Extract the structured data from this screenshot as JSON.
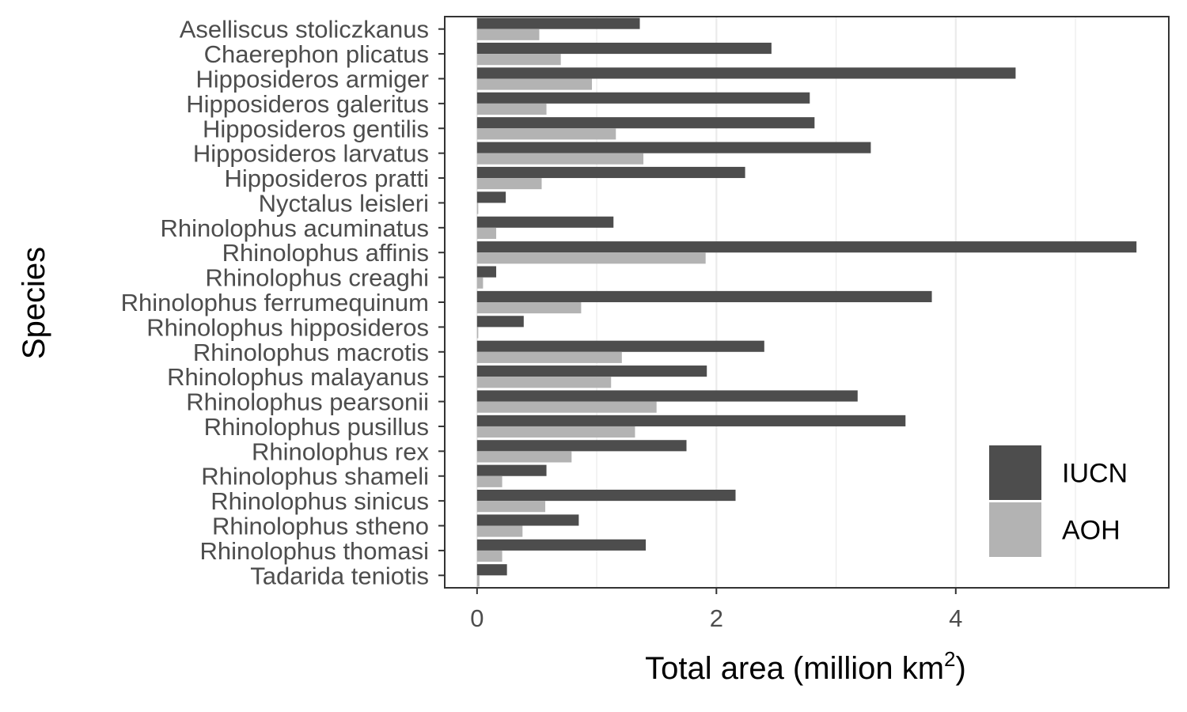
{
  "chart_data": {
    "type": "bar",
    "orientation": "horizontal",
    "categories": [
      "Aselliscus stoliczkanus",
      "Chaerephon plicatus",
      "Hipposideros armiger",
      "Hipposideros galeritus",
      "Hipposideros gentilis",
      "Hipposideros larvatus",
      "Hipposideros pratti",
      "Nyctalus leisleri",
      "Rhinolophus acuminatus",
      "Rhinolophus affinis",
      "Rhinolophus creaghi",
      "Rhinolophus ferrumequinum",
      "Rhinolophus hipposideros",
      "Rhinolophus macrotis",
      "Rhinolophus malayanus",
      "Rhinolophus pearsonii",
      "Rhinolophus pusillus",
      "Rhinolophus rex",
      "Rhinolophus shameli",
      "Rhinolophus sinicus",
      "Rhinolophus stheno",
      "Rhinolophus thomasi",
      "Tadarida teniotis"
    ],
    "series": [
      {
        "name": "IUCN",
        "color": "#4d4d4d",
        "values": [
          1.36,
          2.46,
          4.5,
          2.78,
          2.82,
          3.29,
          2.24,
          0.24,
          1.14,
          5.51,
          0.16,
          3.8,
          0.39,
          2.4,
          1.92,
          3.18,
          3.58,
          1.75,
          0.58,
          2.16,
          0.85,
          1.41,
          0.25
        ]
      },
      {
        "name": "AOH",
        "color": "#b3b3b3",
        "values": [
          0.52,
          0.7,
          0.96,
          0.58,
          1.16,
          1.39,
          0.54,
          0.01,
          0.16,
          1.91,
          0.05,
          0.87,
          0.01,
          1.21,
          1.12,
          1.5,
          1.32,
          0.79,
          0.21,
          0.57,
          0.38,
          0.21,
          0.02
        ]
      }
    ],
    "xlabel": "Total area (million km",
    "xlabel_superscript": "2",
    "xlabel_suffix": ")",
    "ylabel": "Species",
    "xlim": [
      -0.27,
      5.78
    ],
    "x_ticks": [
      0,
      2,
      4
    ],
    "x_tick_labels": [
      "0",
      "2",
      "4"
    ],
    "grid": true,
    "legend_position": "bottom-right"
  }
}
